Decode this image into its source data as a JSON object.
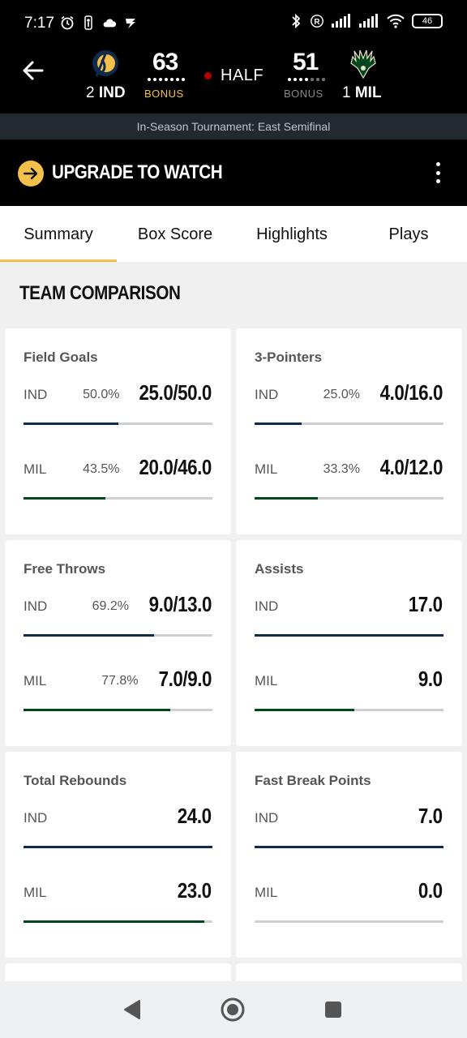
{
  "status_bar": {
    "time": "7:17",
    "left_icons": [
      "alarm-icon",
      "nba-icon",
      "cloud-icon",
      "app-icon"
    ],
    "right_icons": [
      "bluetooth-icon",
      "registered-icon",
      "signal-icon",
      "signal-icon",
      "wifi-icon"
    ],
    "battery": "46"
  },
  "game": {
    "home": {
      "seed": "2",
      "abbr": "IND",
      "score": "63",
      "bonus": "BONUS",
      "color": "#f5c04a"
    },
    "away": {
      "seed": "1",
      "abbr": "MIL",
      "score": "51",
      "bonus": "BONUS",
      "color": "#888888"
    },
    "period": "HALF",
    "tournament": "In-Season Tournament: East Semifinal"
  },
  "upgrade": {
    "label": "UPGRADE TO WATCH"
  },
  "tabs": [
    {
      "label": "Summary",
      "active": true
    },
    {
      "label": "Box Score",
      "active": false
    },
    {
      "label": "Highlights",
      "active": false
    },
    {
      "label": "Plays",
      "active": false
    }
  ],
  "section_title": "TEAM COMPARISON",
  "team_colors": {
    "IND": "#102a4c",
    "MIL": "#00471b",
    "accent": "#f5c04a"
  },
  "stats": [
    {
      "title": "Field Goals",
      "rows": [
        {
          "team": "IND",
          "pct": "50.0%",
          "value": "25.0/50.0",
          "fill": 0.5
        },
        {
          "team": "MIL",
          "pct": "43.5%",
          "value": "20.0/46.0",
          "fill": 0.435
        }
      ]
    },
    {
      "title": "3-Pointers",
      "rows": [
        {
          "team": "IND",
          "pct": "25.0%",
          "value": "4.0/16.0",
          "fill": 0.25
        },
        {
          "team": "MIL",
          "pct": "33.3%",
          "value": "4.0/12.0",
          "fill": 0.333
        }
      ]
    },
    {
      "title": "Free Throws",
      "rows": [
        {
          "team": "IND",
          "pct": "69.2%",
          "value": "9.0/13.0",
          "fill": 0.692
        },
        {
          "team": "MIL",
          "pct": "77.8%",
          "value": "7.0/9.0",
          "fill": 0.778
        }
      ]
    },
    {
      "title": "Assists",
      "rows": [
        {
          "team": "IND",
          "pct": "",
          "value": "17.0",
          "fill": 1.0
        },
        {
          "team": "MIL",
          "pct": "",
          "value": "9.0",
          "fill": 0.529
        }
      ]
    },
    {
      "title": "Total Rebounds",
      "rows": [
        {
          "team": "IND",
          "pct": "",
          "value": "24.0",
          "fill": 1.0
        },
        {
          "team": "MIL",
          "pct": "",
          "value": "23.0",
          "fill": 0.958
        }
      ]
    },
    {
      "title": "Fast Break Points",
      "rows": [
        {
          "team": "IND",
          "pct": "",
          "value": "7.0",
          "fill": 1.0
        },
        {
          "team": "MIL",
          "pct": "",
          "value": "0.0",
          "fill": 0.0
        }
      ]
    }
  ],
  "nav": [
    "back-icon",
    "home-icon",
    "recents-icon"
  ]
}
